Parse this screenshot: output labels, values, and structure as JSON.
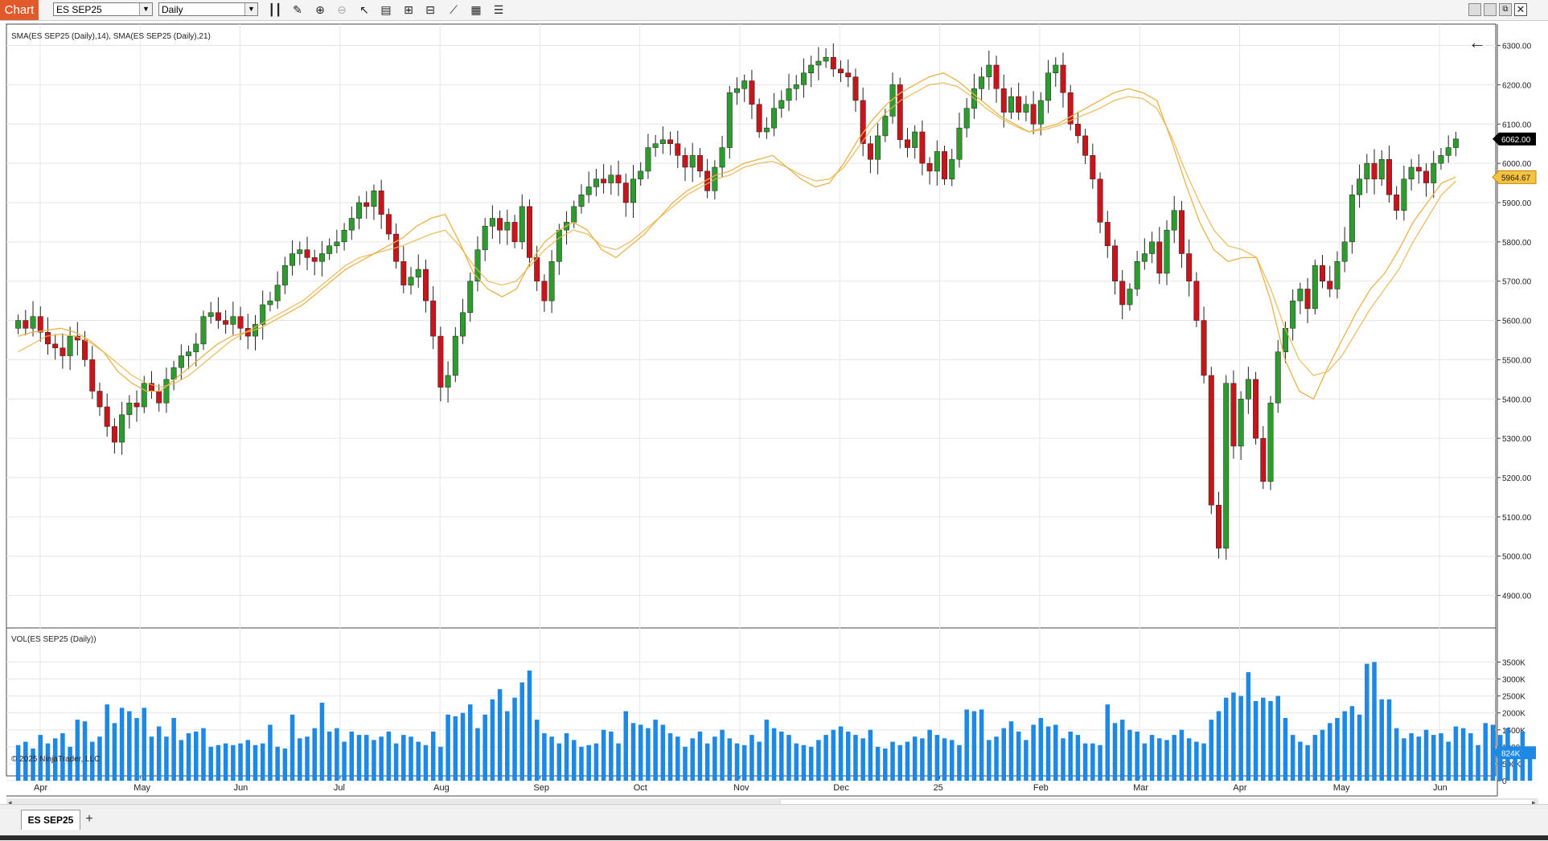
{
  "app": {
    "tab_label": "Chart",
    "instrument": "ES SEP25",
    "interval": "Daily",
    "instrument_tab": "ES SEP25",
    "add_tab": "+",
    "copyright": "© 2025 NinjaTrader, LLC",
    "back_arrow": "←"
  },
  "toolbar": {
    "icons": [
      "bar-type-icon",
      "draw-pencil-icon",
      "zoom-in-icon",
      "zoom-out-icon",
      "pointer-icon",
      "data-box-icon",
      "indicators-icon",
      "strategies-icon",
      "drawing-tools-icon",
      "properties-icon",
      "templates-icon"
    ]
  },
  "window": {
    "buttons": [
      "minimize",
      "restore",
      "maximize",
      "close"
    ]
  },
  "colors": {
    "up": "#2e9b2e",
    "down": "#c8151b",
    "sma": "#e8b44a",
    "volume": "#1e88e5",
    "grid": "#e6e6e6",
    "last_price_bg": "#000000",
    "sma_label_bg": "#f5c242"
  },
  "chart_data": [
    {
      "type": "candlestick",
      "title": "SMA(ES SEP25 (Daily),14), SMA(ES SEP25 (Daily),21)",
      "x_ticks": [
        "Apr",
        "May",
        "Jun",
        "Jul",
        "Aug",
        "Sep",
        "Oct",
        "Nov",
        "Dec",
        "25",
        "Feb",
        "Mar",
        "Apr",
        "May",
        "Jun"
      ],
      "y_ticks": [
        4900,
        5000,
        5100,
        5200,
        5300,
        5400,
        5500,
        5600,
        5700,
        5800,
        5900,
        6000,
        6100,
        6200,
        6300
      ],
      "y_tick_labels": [
        "4900.00",
        "5000.00",
        "5100.00",
        "5200.00",
        "5300.00",
        "5400.00",
        "5500.00",
        "5600.00",
        "5700.00",
        "5800.00",
        "5900.00",
        "6000.00",
        "6100.00",
        "6200.00",
        "6300.00"
      ],
      "ylim": [
        4850,
        6340
      ],
      "last_price": 6062.0,
      "last_price_label": "6062.00",
      "sma_label": "5964.67",
      "sma_label_value": 5964.67,
      "series": [
        {
          "name": "Close",
          "values": [
            5600,
            5580,
            5610,
            5570,
            5540,
            5530,
            5510,
            5560,
            5550,
            5500,
            5420,
            5380,
            5330,
            5290,
            5360,
            5390,
            5380,
            5440,
            5420,
            5390,
            5450,
            5480,
            5510,
            5520,
            5540,
            5610,
            5620,
            5600,
            5590,
            5610,
            5580,
            5560,
            5590,
            5640,
            5650,
            5690,
            5740,
            5770,
            5780,
            5760,
            5750,
            5770,
            5790,
            5800,
            5830,
            5860,
            5900,
            5890,
            5930,
            5870,
            5820,
            5750,
            5690,
            5710,
            5730,
            5650,
            5560,
            5430,
            5460,
            5560,
            5620,
            5700,
            5780,
            5840,
            5860,
            5830,
            5850,
            5800,
            5890,
            5760,
            5700,
            5650,
            5750,
            5830,
            5850,
            5890,
            5920,
            5940,
            5960,
            5950,
            5970,
            5950,
            5900,
            5960,
            5980,
            6040,
            6050,
            6060,
            6050,
            6020,
            5990,
            6020,
            5980,
            5930,
            5990,
            6040,
            6180,
            6190,
            6210,
            6150,
            6080,
            6090,
            6140,
            6160,
            6190,
            6200,
            6230,
            6250,
            6260,
            6270,
            6240,
            6230,
            6220,
            6160,
            6050,
            6010,
            6070,
            6120,
            6200,
            6060,
            6040,
            6080,
            6000,
            5980,
            6030,
            5960,
            6010,
            6090,
            6140,
            6190,
            6220,
            6250,
            6190,
            6130,
            6170,
            6130,
            6150,
            6100,
            6160,
            6230,
            6250,
            6180,
            6100,
            6070,
            6020,
            5960,
            5850,
            5790,
            5700,
            5640,
            5680,
            5750,
            5770,
            5800,
            5720,
            5830,
            5880,
            5770,
            5700,
            5600,
            5460,
            5130,
            5020,
            5440,
            5280,
            5400,
            5450,
            5300,
            5190,
            5390,
            5520,
            5580,
            5650,
            5680,
            5630,
            5740,
            5700,
            5680,
            5750,
            5800,
            5920,
            5960,
            6000,
            5960,
            6010,
            5920,
            5880,
            5960,
            5990,
            5980,
            5950,
            6000,
            6020,
            6040,
            6062
          ]
        },
        {
          "name": "SMA(14)",
          "values": [
            5560,
            5570,
            5575,
            5580,
            5570,
            5550,
            5520,
            5470,
            5440,
            5420,
            5420,
            5450,
            5480,
            5510,
            5540,
            5560,
            5570,
            5580,
            5600,
            5620,
            5640,
            5670,
            5700,
            5730,
            5750,
            5770,
            5790,
            5810,
            5840,
            5860,
            5870,
            5800,
            5720,
            5680,
            5660,
            5680,
            5750,
            5800,
            5830,
            5850,
            5830,
            5780,
            5760,
            5790,
            5820,
            5860,
            5900,
            5930,
            5950,
            5970,
            5980,
            6000,
            6010,
            6020,
            5990,
            5960,
            5940,
            5950,
            6000,
            6060,
            6110,
            6150,
            6180,
            6200,
            6220,
            6230,
            6210,
            6180,
            6150,
            6120,
            6100,
            6080,
            6090,
            6100,
            6120,
            6140,
            6160,
            6180,
            6190,
            6180,
            6160,
            6060,
            5950,
            5850,
            5780,
            5750,
            5760,
            5760,
            5650,
            5500,
            5420,
            5400,
            5480,
            5550,
            5620,
            5680,
            5720,
            5780,
            5850,
            5900,
            5950,
            5965
          ]
        },
        {
          "name": "SMA(21)",
          "values": [
            5520,
            5540,
            5560,
            5565,
            5560,
            5545,
            5520,
            5490,
            5460,
            5440,
            5430,
            5440,
            5460,
            5490,
            5520,
            5550,
            5570,
            5590,
            5610,
            5630,
            5650,
            5680,
            5710,
            5740,
            5760,
            5770,
            5780,
            5790,
            5805,
            5820,
            5830,
            5790,
            5740,
            5700,
            5690,
            5700,
            5740,
            5780,
            5810,
            5830,
            5820,
            5790,
            5780,
            5800,
            5830,
            5860,
            5890,
            5920,
            5940,
            5960,
            5970,
            5990,
            6000,
            6005,
            5990,
            5970,
            5955,
            5960,
            5990,
            6040,
            6090,
            6130,
            6160,
            6180,
            6200,
            6205,
            6195,
            6170,
            6140,
            6115,
            6095,
            6080,
            6085,
            6095,
            6110,
            6125,
            6140,
            6160,
            6170,
            6165,
            6140,
            6070,
            5980,
            5900,
            5830,
            5790,
            5780,
            5760,
            5680,
            5580,
            5500,
            5460,
            5470,
            5510,
            5570,
            5630,
            5680,
            5730,
            5800,
            5860,
            5920,
            5955
          ]
        }
      ]
    },
    {
      "type": "bar",
      "title": "VOL(ES SEP25 (Daily))",
      "y_ticks": [
        0,
        500,
        1000,
        1500,
        2000,
        2500,
        3000,
        3500
      ],
      "y_tick_labels": [
        "0",
        "500K",
        "1000K",
        "1500K",
        "2000K",
        "2500K",
        "3000K",
        "3500K"
      ],
      "ylim": [
        0,
        3700
      ],
      "last_volume_label": "824K",
      "last_volume": 824,
      "series": [
        {
          "name": "Volume",
          "values": [
            1050,
            1150,
            950,
            1350,
            1100,
            1250,
            1400,
            1000,
            1800,
            1750,
            1150,
            1300,
            2250,
            1700,
            2150,
            2050,
            1850,
            2150,
            1300,
            1600,
            1300,
            1850,
            1200,
            1400,
            1450,
            1550,
            1000,
            1050,
            1100,
            1050,
            1100,
            1200,
            1050,
            1100,
            1650,
            1000,
            950,
            1950,
            1250,
            1300,
            1550,
            2300,
            1450,
            1550,
            1150,
            1450,
            1350,
            1350,
            1200,
            1300,
            1450,
            1100,
            1350,
            1300,
            1150,
            1050,
            1450,
            1000,
            1950,
            1900,
            2000,
            2250,
            1550,
            1950,
            2400,
            2700,
            2050,
            2450,
            2900,
            3250,
            1800,
            1400,
            1300,
            1100,
            1400,
            1200,
            1000,
            1050,
            1100,
            1500,
            1450,
            1100,
            2050,
            1700,
            1650,
            1550,
            1800,
            1650,
            1400,
            1300,
            1000,
            1250,
            1450,
            1100,
            1300,
            1500,
            1250,
            1100,
            1050,
            1350,
            1150,
            1800,
            1550,
            1450,
            1350,
            1100,
            1050,
            1000,
            1200,
            1350,
            1500,
            1600,
            1450,
            1350,
            1250,
            1500,
            1000,
            950,
            1150,
            1050,
            1150,
            1300,
            1250,
            1500,
            1350,
            1250,
            1200,
            1050,
            2100,
            2050,
            2100,
            1200,
            1300,
            1550,
            1750,
            1450,
            1200,
            1650,
            1850,
            1600,
            1650,
            1250,
            1450,
            1350,
            1100,
            1100,
            1050,
            2250,
            1700,
            1800,
            1500,
            1450,
            1100,
            1350,
            1250,
            1200,
            1350,
            1500,
            1250,
            1150,
            1100,
            1800,
            2050,
            2450,
            2600,
            2500,
            3200,
            2350,
            2450,
            2350,
            2500,
            1850,
            1350,
            1150,
            1050,
            1350,
            1500,
            1700,
            1850,
            2050,
            2200,
            1950,
            3450,
            3500,
            2400,
            2400,
            1550,
            1250,
            1400,
            1300,
            1500,
            1350,
            1400,
            1150,
            1600,
            1550,
            1400,
            1050,
            1700,
            1650,
            1350,
            1550,
            1000,
            1450,
            824
          ]
        }
      ]
    }
  ]
}
